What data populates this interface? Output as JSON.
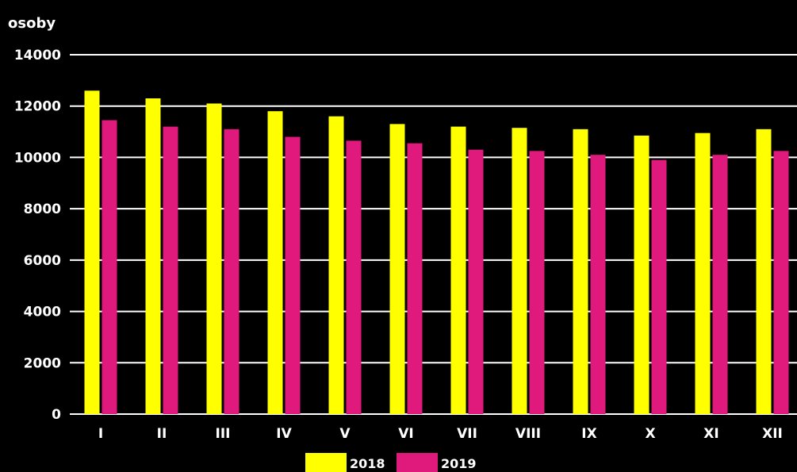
{
  "chart_data": {
    "type": "bar",
    "title": "",
    "ylabel": "osoby",
    "xlabel": "",
    "ylim": [
      0,
      14000
    ],
    "yticks": [
      "0",
      "2000",
      "4000",
      "6000",
      "8000",
      "10000",
      "12000",
      "14000"
    ],
    "grid": true,
    "legend_position": "bottom",
    "categories": [
      "I",
      "II",
      "III",
      "IV",
      "V",
      "VI",
      "VII",
      "VIII",
      "IX",
      "X",
      "XI",
      "XII"
    ],
    "series": [
      {
        "name": "2018",
        "color": "#ffff00",
        "values": [
          12600,
          12300,
          12100,
          11800,
          11600,
          11300,
          11200,
          11150,
          11100,
          10850,
          10950,
          11100
        ]
      },
      {
        "name": "2019",
        "color": "#e0197d",
        "values": [
          11450,
          11200,
          11100,
          10800,
          10650,
          10550,
          10300,
          10250,
          10100,
          9900,
          10100,
          10250
        ]
      }
    ]
  }
}
